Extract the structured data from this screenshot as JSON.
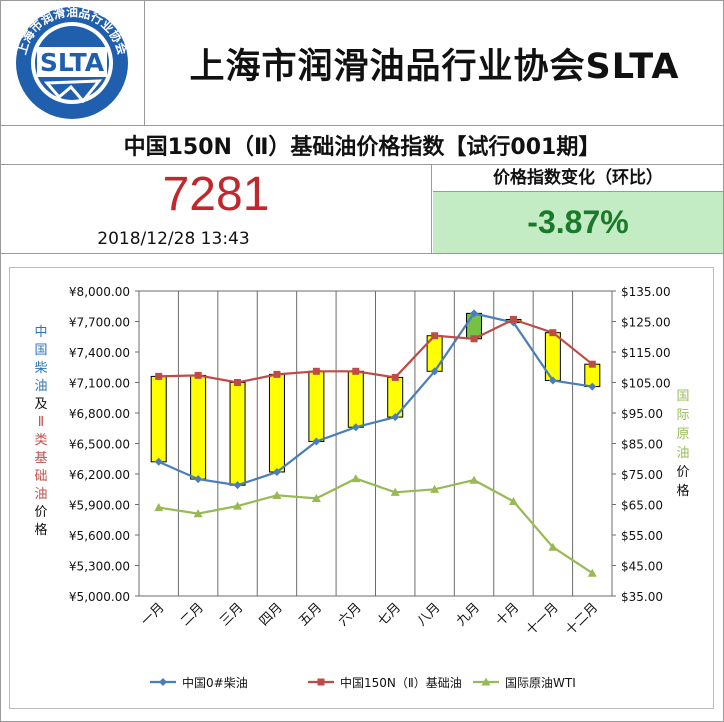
{
  "header": {
    "logo_ring_text": "上海市润滑油品行业协会",
    "logo_text": "SLTA",
    "title": "上海市润滑油品行业协会SLTA"
  },
  "index": {
    "title": "中国150N（Ⅱ）基础油价格指数【试行001期】",
    "value": "7281",
    "datetime": "2018/12/28 13:43",
    "change_label": "价格指数变化（环比）",
    "change_value": "-3.87%"
  },
  "colors": {
    "index_value": "#c0282c",
    "change_bg": "#c4ecc4",
    "change_text": "#1a7a2c",
    "diesel": "#4a7ebb",
    "base_oil": "#be4b48",
    "wti": "#98b954",
    "candle_yellow": "#ffff00",
    "candle_green": "#76c043"
  },
  "chart_data": {
    "type": "line",
    "categories": [
      "一月",
      "二月",
      "三月",
      "四月",
      "五月",
      "六月",
      "七月",
      "八月",
      "九月",
      "十月",
      "十一月",
      "十二月"
    ],
    "left_axis": {
      "label_chars": [
        {
          "c": "中",
          "color": "#2e75b6"
        },
        {
          "c": "国",
          "color": "#2e75b6"
        },
        {
          "c": "柴",
          "color": "#2e75b6"
        },
        {
          "c": "油",
          "color": "#2e75b6"
        },
        {
          "c": "及",
          "color": "#111111"
        },
        {
          "c": "Ⅱ",
          "color": "#c0504d"
        },
        {
          "c": "类",
          "color": "#c0504d"
        },
        {
          "c": "基",
          "color": "#c0504d"
        },
        {
          "c": "础",
          "color": "#c0504d"
        },
        {
          "c": "油",
          "color": "#c0504d"
        },
        {
          "c": "价",
          "color": "#111111"
        },
        {
          "c": "格",
          "color": "#111111"
        }
      ],
      "ylim": [
        5000,
        8000
      ],
      "ticks": [
        "¥5,000.00",
        "¥5,300.00",
        "¥5,600.00",
        "¥5,900.00",
        "¥6,200.00",
        "¥6,500.00",
        "¥6,800.00",
        "¥7,100.00",
        "¥7,400.00",
        "¥7,700.00",
        "¥8,000.00"
      ],
      "tick_values": [
        5000,
        5300,
        5600,
        5900,
        6200,
        6500,
        6800,
        7100,
        7400,
        7700,
        8000
      ]
    },
    "right_axis": {
      "label_chars": [
        {
          "c": "国",
          "color": "#9bbb59"
        },
        {
          "c": "际",
          "color": "#9bbb59"
        },
        {
          "c": "原",
          "color": "#9bbb59"
        },
        {
          "c": "油",
          "color": "#9bbb59"
        },
        {
          "c": "价",
          "color": "#111111"
        },
        {
          "c": "格",
          "color": "#111111"
        }
      ],
      "ylim": [
        35,
        135
      ],
      "ticks": [
        "$35.00",
        "$45.00",
        "$55.00",
        "$65.00",
        "$75.00",
        "$85.00",
        "$95.00",
        "$105.00",
        "$115.00",
        "$125.00",
        "$135.00"
      ],
      "tick_values": [
        35,
        45,
        55,
        65,
        75,
        85,
        95,
        105,
        115,
        125,
        135
      ]
    },
    "series": [
      {
        "name": "中国0#柴油",
        "axis": "left",
        "marker": "diamond",
        "color": "#4a7ebb",
        "values": [
          6320,
          6150,
          6090,
          6220,
          6520,
          6660,
          6760,
          7210,
          7780,
          7690,
          7120,
          7060
        ]
      },
      {
        "name": "中国150N（Ⅱ）基础油",
        "axis": "left",
        "marker": "square",
        "color": "#be4b48",
        "values": [
          7160,
          7170,
          7100,
          7180,
          7210,
          7210,
          7150,
          7560,
          7530,
          7720,
          7590,
          7280
        ]
      },
      {
        "name": "国际原油WTI",
        "axis": "right",
        "marker": "triangle",
        "color": "#98b954",
        "values": [
          64.0,
          62.0,
          64.5,
          68.0,
          67.0,
          73.5,
          69.0,
          70.0,
          73.0,
          66.0,
          51.0,
          42.5
        ]
      }
    ],
    "candles": {
      "low_series": "中国0#柴油",
      "high_series": "中国150N（Ⅱ）基础油",
      "highlight_color_month": "九月"
    },
    "legend_position": "bottom",
    "gridlines": "vertical"
  }
}
